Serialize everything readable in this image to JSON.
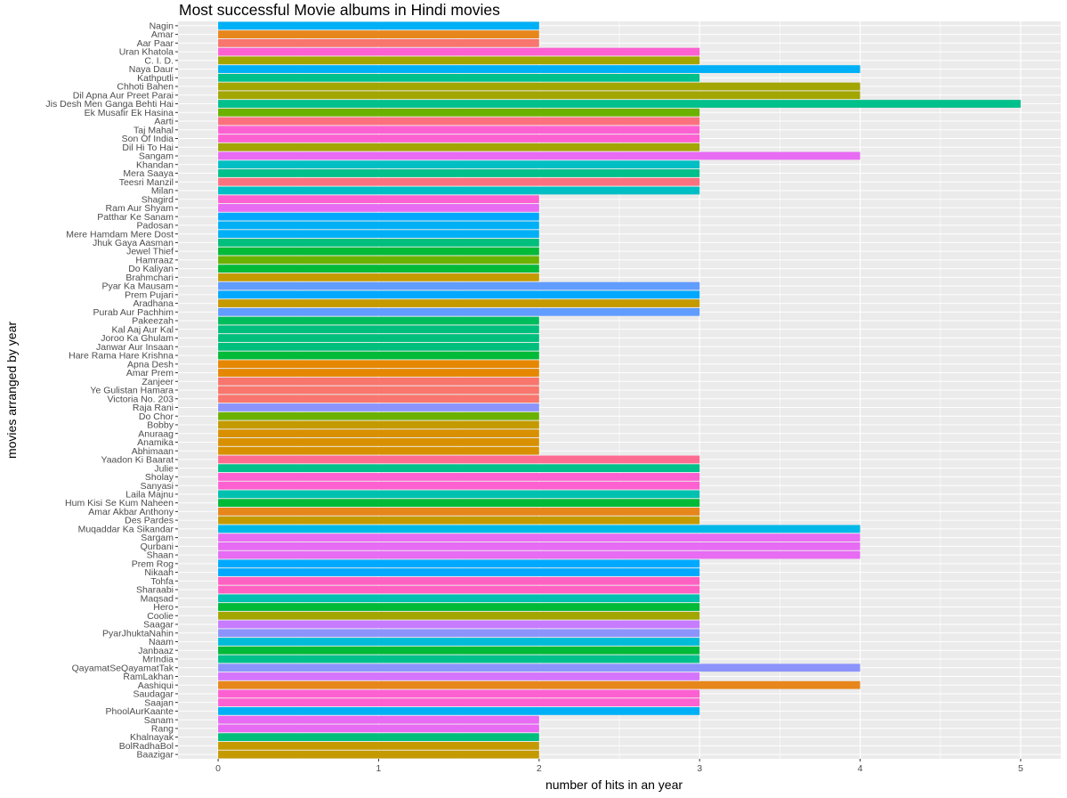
{
  "chart_data": {
    "type": "bar",
    "orientation": "horizontal",
    "title": "Most successful Movie albums in Hindi movies",
    "xlabel": "number of hits in an year",
    "ylabel": "movies arranged by year",
    "xlim": [
      -0.25,
      5.25
    ],
    "xticks": [
      0,
      1,
      2,
      3,
      4,
      5
    ],
    "xtick_labels": [
      "0",
      "1",
      "2",
      "3",
      "4",
      "5"
    ],
    "grid": true,
    "legend": "none",
    "panel_background": "#ebebeb",
    "categories": [
      "Nagin",
      "Amar",
      "Aar Paar",
      "Uran Khatola",
      "C. I. D.",
      "Naya Daur",
      "Kathputli",
      "Chhoti Bahen",
      "Dil Apna Aur Preet Parai",
      "Jis Desh Men Ganga Behti Hai",
      "Ek Musafir Ek Hasina",
      "Aarti",
      "Taj Mahal",
      "Son Of India",
      "Dil Hi To Hai",
      "Sangam",
      "Khandan",
      "Mera Saaya",
      "Teesri Manzil",
      "Milan",
      "Shagird",
      "Ram Aur Shyam",
      "Patthar Ke Sanam",
      "Padosan",
      "Mere Hamdam Mere Dost",
      "Jhuk Gaya Aasman",
      "Jewel Thief",
      "Hamraaz",
      "Do Kaliyan",
      "Brahmchari",
      "Pyar Ka Mausam",
      "Prem Pujari",
      "Aradhana",
      "Purab Aur Pachhim",
      "Pakeezah",
      "Kal Aaj Aur Kal",
      "Joroo Ka Ghulam",
      "Janwar Aur Insaan",
      "Hare Rama Hare Krishna",
      "Apna Desh",
      "Amar Prem",
      "Zanjeer",
      "Ye Gulistan Hamara",
      "Victoria No. 203",
      "Raja Rani",
      "Do Chor",
      "Bobby",
      "Anuraag",
      "Anamika",
      "Abhimaan",
      "Yaadon Ki Baarat",
      "Julie",
      "Sholay",
      "Sanyasi",
      "Laila Majnu",
      "Hum Kisi Se Kum Naheen",
      "Amar Akbar Anthony",
      "Des Pardes",
      "Muqaddar Ka Sikandar",
      "Sargam",
      "Qurbani",
      "Shaan",
      "Prem Rog",
      "Nikaah",
      "Tohfa",
      "Sharaabi",
      "Maqsad",
      "Hero",
      "Coolie",
      "Saagar",
      "PyarJhuktaNahin",
      "Naam",
      "Janbaaz",
      "MrIndia",
      "QayamatSeQayamatTak",
      "RamLakhan",
      "Aashiqui",
      "Saudagar",
      "Saajan",
      "PhoolAurKaante",
      "Sanam",
      "Rang",
      "Khalnayak",
      "BolRadhaBol",
      "Baazigar"
    ],
    "values": [
      2,
      2,
      2,
      3,
      3,
      4,
      3,
      4,
      4,
      5,
      3,
      3,
      3,
      3,
      3,
      4,
      3,
      3,
      3,
      3,
      2,
      2,
      2,
      2,
      2,
      2,
      2,
      2,
      2,
      2,
      3,
      3,
      3,
      3,
      2,
      2,
      2,
      2,
      2,
      2,
      2,
      2,
      2,
      2,
      2,
      2,
      2,
      2,
      2,
      2,
      3,
      3,
      3,
      3,
      3,
      3,
      3,
      3,
      4,
      4,
      4,
      4,
      3,
      3,
      3,
      3,
      3,
      3,
      3,
      3,
      3,
      3,
      3,
      3,
      4,
      3,
      4,
      3,
      3,
      3,
      2,
      2,
      2,
      2,
      2
    ],
    "colors": [
      "#00b0f6",
      "#e7861b",
      "#f8766d",
      "#fd61d1",
      "#a3a500",
      "#00b0f6",
      "#00c08b",
      "#a3a500",
      "#a3a500",
      "#00c08b",
      "#6bb100",
      "#fc717f",
      "#fd61d1",
      "#fd61d1",
      "#a3a500",
      "#e76bf3",
      "#00bfc4",
      "#00c08b",
      "#fc717f",
      "#00bfc4",
      "#fd61d1",
      "#e76bf3",
      "#00a9ff",
      "#00b0f6",
      "#00b0f6",
      "#00bf7d",
      "#00ba38",
      "#6bb100",
      "#00ba38",
      "#c49a00",
      "#619cff",
      "#00a9ff",
      "#c49a00",
      "#619cff",
      "#00bd5c",
      "#00bf7d",
      "#00bf7d",
      "#00bf7d",
      "#00ba38",
      "#e58700",
      "#e58700",
      "#f8766d",
      "#f8766d",
      "#f8766d",
      "#8c94fc",
      "#6bb100",
      "#c49a00",
      "#d89000",
      "#d89000",
      "#d89000",
      "#ff6c91",
      "#00c08b",
      "#fd61d1",
      "#fd61d1",
      "#00c0af",
      "#00ba38",
      "#e7861b",
      "#c49a00",
      "#00b8e7",
      "#e76bf3",
      "#e76bf3",
      "#e76bf3",
      "#00a9ff",
      "#00a9ff",
      "#ff61c3",
      "#ff61c3",
      "#00c0af",
      "#00ba38",
      "#a3a500",
      "#c77cff",
      "#8c94fc",
      "#00bcd8",
      "#00ba38",
      "#00c08b",
      "#8c94fc",
      "#d575fe",
      "#e7861b",
      "#fd61d1",
      "#fd61d1",
      "#00b0f6",
      "#e76bf3",
      "#e76bf3",
      "#00bf7d",
      "#c49a00",
      "#c49a00"
    ]
  }
}
